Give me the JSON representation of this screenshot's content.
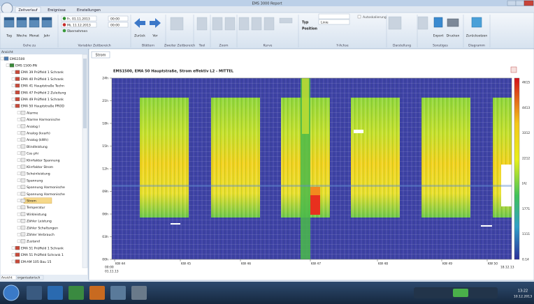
{
  "window": {
    "title": "EMS 3000 Report"
  },
  "ribbon": {
    "tabs": [
      "Zeitverlauf",
      "Ereignisse",
      "Einstellungen"
    ],
    "nav": [
      "Tag",
      "Woche",
      "Monat",
      "Jahr"
    ],
    "from": "Fr, 01.11.2013",
    "to": "Mi, 11.12.2013",
    "from_time": "00:00",
    "to_time": "00:00",
    "apply": "Übernehmen",
    "back": "Zurück",
    "forward": "Vor",
    "type_label": "Typ",
    "type_value": "Linie",
    "position_label": "Position",
    "autoscale": "Autoskalierung",
    "export": "Export",
    "print": "Drucken",
    "reset": "Zurücksetzen",
    "groups": [
      "Gehe zu",
      "Variabler Zeitbereich",
      "Blättern",
      "Zweiter Zeitbereich",
      "Tool",
      "Zoom",
      "Kurve",
      "Y-Achse",
      "Darstellung",
      "Sonstiges",
      "Diagramm"
    ]
  },
  "tree": {
    "header": "Ansicht",
    "root": "EMS1500",
    "station": "EMS 1500-PN",
    "devices": [
      {
        "name": "EMA 39 Prüffeld 1 Schrank"
      },
      {
        "name": "EMA 40 Prüffeld 1 Schrank"
      },
      {
        "name": "EMA 41 Hauptstraße Techn"
      },
      {
        "name": "EMA 47 Prüffeld 2 Zuleitung"
      },
      {
        "name": "EMA 49 Prüffeld 1 Schrank"
      },
      {
        "name": "EMA 50 Hauptstraße PROD",
        "channels": [
          "Alarme",
          "Alarme Harmonische",
          "Analog I",
          "Analog (kvarh)",
          "Analog (kWh)",
          "Blindleistung",
          "Cos phi",
          "Klirrfaktor Spannung",
          "Klirrfaktor Strom",
          "Scheinleistung",
          "Spannung",
          "Spannung Harmonische",
          "Spannung Harmonische",
          "Strom",
          "Temperatur",
          "Wirkleistung",
          "Zähler Leistung",
          "Zähler Schaltungen",
          "Zähler Verbrauch",
          "Zustand"
        ],
        "selected_channel": 13
      },
      {
        "name": "EMA 51 Prüffeld 1 Schrank"
      },
      {
        "name": "EMA 51 Prüffeld Schrank 1"
      },
      {
        "name": "EM-AM 105 Bau 15"
      }
    ],
    "tabs": [
      "Ansicht",
      "organisatorisch"
    ]
  },
  "chart": {
    "tab": "Strom",
    "title": "EMS1500, EMA 50 Hauptstraße, Strom effektiv L2 - MITTEL",
    "y_labels": [
      "24h",
      "21h",
      "18h",
      "15h",
      "12h",
      "09h",
      "06h",
      "03h",
      "00h"
    ],
    "x_labels": [
      "KW 44",
      "KW 45",
      "KW 46",
      "KW 47",
      "KW 48",
      "KW 49",
      "KW 50"
    ],
    "start_time": "00:00",
    "start_date": "01.11.13",
    "end_date": "18.12.13",
    "scale_labels": [
      "4615",
      "4413",
      "3312",
      "2212",
      "[A]",
      "1771",
      "1111",
      "0.14"
    ]
  },
  "taskbar": {
    "time": "13:22",
    "date": "10.12.2013"
  }
}
